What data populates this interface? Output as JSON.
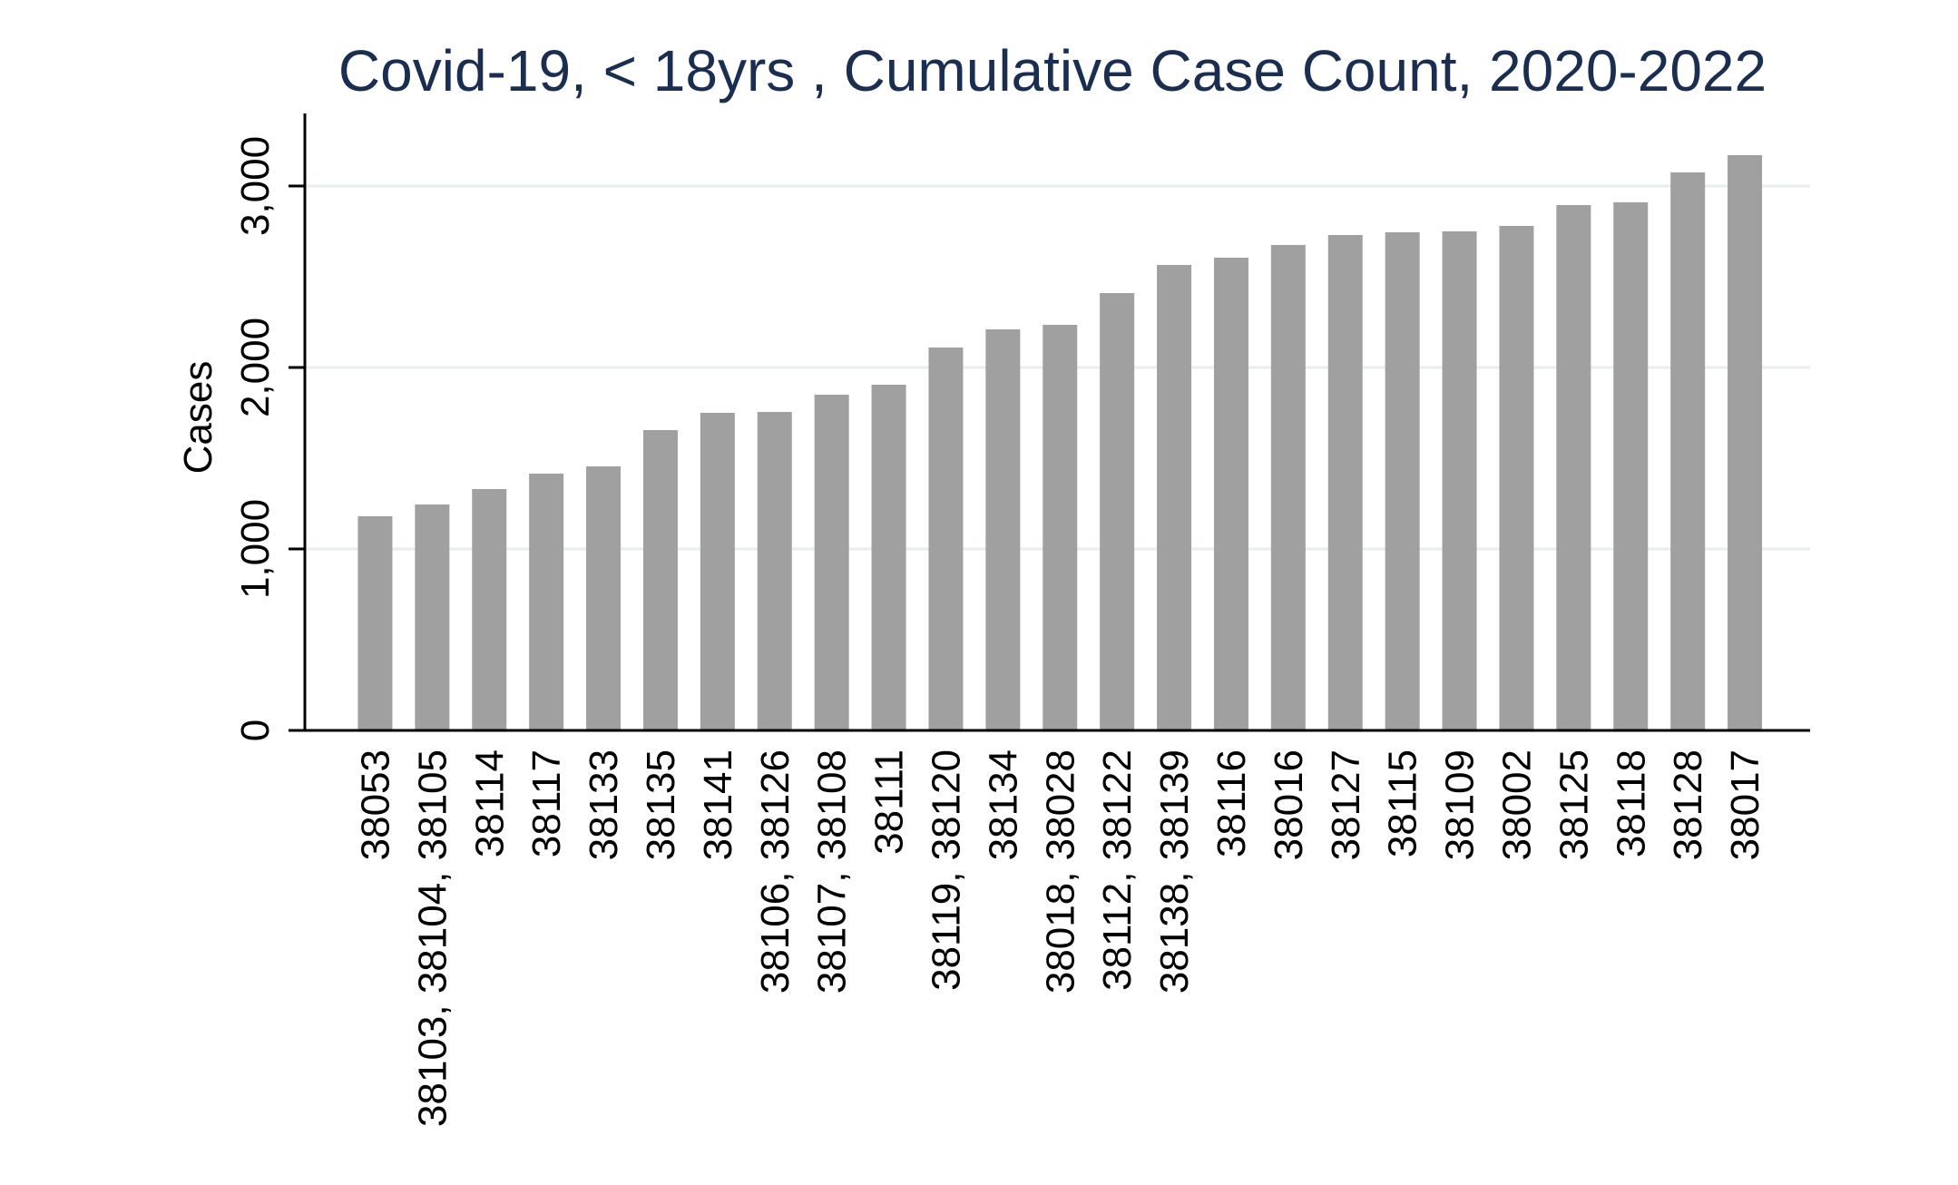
{
  "chart_data": {
    "type": "bar",
    "title": "Covid-19, < 18yrs , Cumulative Case Count, 2020-2022",
    "xlabel": "",
    "ylabel": "Cases",
    "ylim": [
      0,
      3400
    ],
    "yticks": [
      0,
      1000,
      2000,
      3000
    ],
    "ytick_labels": [
      "0",
      "1,000",
      "2,000",
      "3,000"
    ],
    "grid": true,
    "categories": [
      [
        "38053"
      ],
      [
        "38103, 38104, 38105"
      ],
      [
        "38114"
      ],
      [
        "38117"
      ],
      [
        "38133"
      ],
      [
        "38135"
      ],
      [
        "38141"
      ],
      [
        "38106, 38126"
      ],
      [
        "38107, 38108"
      ],
      [
        "38111"
      ],
      [
        "38119, 38120"
      ],
      [
        "38134"
      ],
      [
        "38018, 38028"
      ],
      [
        "38112, 38122"
      ],
      [
        "38138, 38139"
      ],
      [
        "38116"
      ],
      [
        "38016"
      ],
      [
        "38127"
      ],
      [
        "38115"
      ],
      [
        "38109"
      ],
      [
        "38002"
      ],
      [
        "38125"
      ],
      [
        "38118"
      ],
      [
        "38128"
      ],
      [
        "38017"
      ]
    ],
    "values": [
      1180,
      1245,
      1330,
      1415,
      1455,
      1655,
      1750,
      1755,
      1850,
      1905,
      2110,
      2210,
      2235,
      2410,
      2565,
      2605,
      2675,
      2730,
      2745,
      2750,
      2780,
      2895,
      2910,
      3075,
      3170
    ]
  }
}
